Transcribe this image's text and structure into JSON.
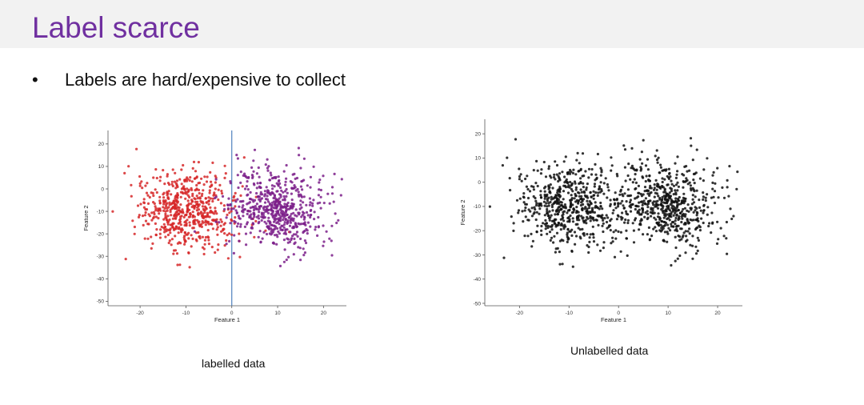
{
  "slide": {
    "title": "Label scarce",
    "bullet_marker": "•",
    "bullet_text": "Labels are hard/expensive to collect",
    "captions": {
      "left": "labelled data",
      "right": "Unlabelled data"
    }
  },
  "colors": {
    "title": "#7030a0",
    "red": "#d62728",
    "purple": "#7b1f8a",
    "black": "#111111",
    "divider": "#4f81bd"
  },
  "chart_data": [
    {
      "type": "scatter",
      "title": "",
      "xlabel": "Feature 1",
      "ylabel": "Feature 2",
      "xlim": [
        -27,
        25
      ],
      "ylim": [
        -52,
        26
      ],
      "xticks": [
        -20,
        -10,
        0,
        10,
        20
      ],
      "yticks": [
        20,
        10,
        0,
        -10,
        -20,
        -30,
        -40,
        -50
      ],
      "grid": false,
      "vertical_line_x": 0,
      "clusters": [
        {
          "label": "red",
          "center": [
            -10,
            -10
          ],
          "spread": [
            5.5,
            9
          ],
          "count": 600,
          "color": "#d62728"
        },
        {
          "label": "purple",
          "center": [
            10,
            -9
          ],
          "spread": [
            5.5,
            9
          ],
          "count": 600,
          "color": "#7b1f8a"
        }
      ]
    },
    {
      "type": "scatter",
      "title": "",
      "xlabel": "Feature 1",
      "ylabel": "Feature 2",
      "xlim": [
        -27,
        25
      ],
      "ylim": [
        -51,
        26
      ],
      "xticks": [
        -20,
        -10,
        0,
        10,
        20
      ],
      "yticks": [
        20,
        10,
        0,
        -10,
        -20,
        -30,
        -40,
        -50
      ],
      "grid": false,
      "clusters": [
        {
          "label": "cluster-1",
          "center": [
            -10,
            -10
          ],
          "spread": [
            5.5,
            9
          ],
          "count": 600,
          "color": "#111111"
        },
        {
          "label": "cluster-2",
          "center": [
            10,
            -9
          ],
          "spread": [
            5.5,
            9
          ],
          "count": 600,
          "color": "#111111"
        }
      ]
    }
  ]
}
